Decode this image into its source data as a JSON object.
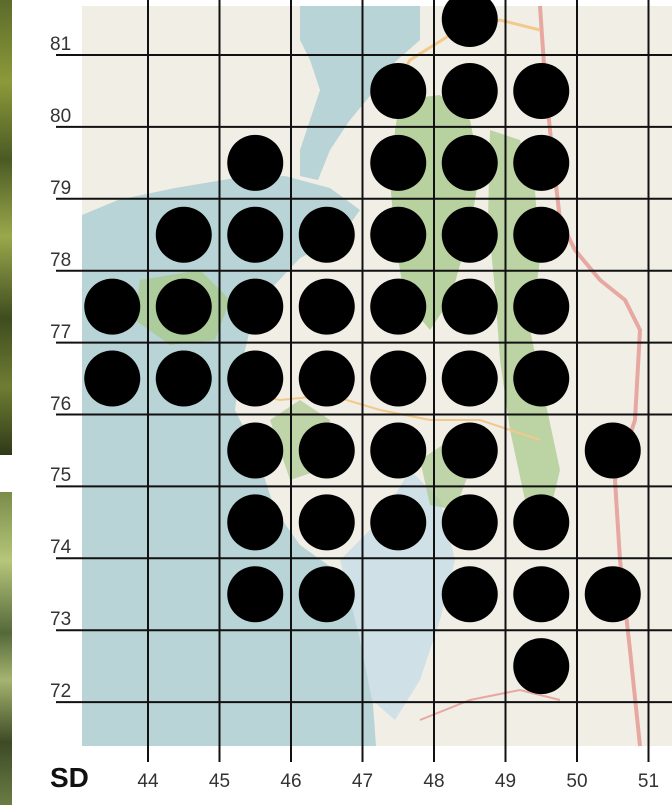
{
  "map": {
    "grid_prefix": "SD",
    "eastings": [
      "44",
      "45",
      "46",
      "47",
      "48",
      "49",
      "50",
      "51"
    ],
    "northings": [
      "81",
      "80",
      "79",
      "78",
      "77",
      "76",
      "75",
      "74",
      "73",
      "72"
    ],
    "colors": {
      "sea": "#b9d4d6",
      "land": "#f1eee6",
      "woodland": "#a9c98d",
      "road": "#e6a8a0",
      "grid": "#111111",
      "dot": "#000000"
    },
    "records": [
      {
        "e": 48,
        "n": 81
      },
      {
        "e": 47,
        "n": 80
      },
      {
        "e": 48,
        "n": 80
      },
      {
        "e": 49,
        "n": 80
      },
      {
        "e": 45,
        "n": 79
      },
      {
        "e": 47,
        "n": 79
      },
      {
        "e": 48,
        "n": 79
      },
      {
        "e": 49,
        "n": 79
      },
      {
        "e": 44,
        "n": 78
      },
      {
        "e": 45,
        "n": 78
      },
      {
        "e": 46,
        "n": 78
      },
      {
        "e": 47,
        "n": 78
      },
      {
        "e": 48,
        "n": 78
      },
      {
        "e": 49,
        "n": 78
      },
      {
        "e": 43,
        "n": 77
      },
      {
        "e": 44,
        "n": 77
      },
      {
        "e": 45,
        "n": 77
      },
      {
        "e": 46,
        "n": 77
      },
      {
        "e": 47,
        "n": 77
      },
      {
        "e": 48,
        "n": 77
      },
      {
        "e": 49,
        "n": 77
      },
      {
        "e": 43,
        "n": 76
      },
      {
        "e": 44,
        "n": 76
      },
      {
        "e": 45,
        "n": 76
      },
      {
        "e": 46,
        "n": 76
      },
      {
        "e": 47,
        "n": 76
      },
      {
        "e": 48,
        "n": 76
      },
      {
        "e": 49,
        "n": 76
      },
      {
        "e": 45,
        "n": 75
      },
      {
        "e": 46,
        "n": 75
      },
      {
        "e": 47,
        "n": 75
      },
      {
        "e": 48,
        "n": 75
      },
      {
        "e": 50,
        "n": 75
      },
      {
        "e": 45,
        "n": 74
      },
      {
        "e": 46,
        "n": 74
      },
      {
        "e": 47,
        "n": 74
      },
      {
        "e": 48,
        "n": 74
      },
      {
        "e": 49,
        "n": 74
      },
      {
        "e": 45,
        "n": 73
      },
      {
        "e": 46,
        "n": 73
      },
      {
        "e": 48,
        "n": 73
      },
      {
        "e": 49,
        "n": 73
      },
      {
        "e": 50,
        "n": 73
      },
      {
        "e": 49,
        "n": 72
      }
    ]
  }
}
